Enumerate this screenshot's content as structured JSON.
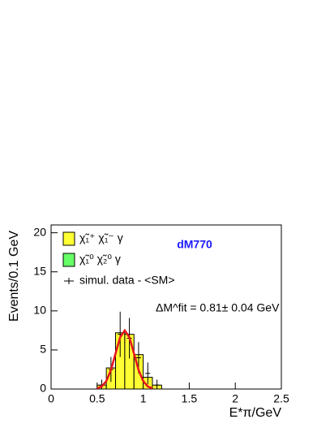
{
  "chart_data": {
    "type": "histogram",
    "title": "dM770",
    "annotation": "ΔM^fit = 0.81± 0.04 GeV",
    "x_label": "E*π/GeV",
    "y_label": "Events/0.1 GeV",
    "bins": [
      0.5,
      0.6,
      0.7,
      0.8,
      0.9,
      1.0,
      1.1,
      1.2
    ],
    "series": [
      {
        "name": "χ̃₁⁺ χ̃₁⁻ γ",
        "color": "#ffff33",
        "values": [
          0.5,
          2.7,
          7.2,
          7.0,
          4.4,
          1.5,
          0.5
        ]
      },
      {
        "name": "χ̃₁⁰ χ̃₂⁰ γ",
        "color": "#66ff66",
        "values": [
          0,
          0,
          0,
          0,
          0,
          0,
          0
        ]
      }
    ],
    "data_points": {
      "name": "simul. data - <SM>",
      "color": "#000000",
      "x": [
        0.55,
        0.65,
        0.75,
        0.85,
        0.95,
        1.05,
        1.15
      ],
      "values": [
        0.5,
        2.5,
        7.0,
        6.5,
        4.0,
        2.0,
        0.5
      ],
      "errors": [
        0.7,
        1.6,
        2.9,
        2.6,
        2.0,
        1.4,
        0.7
      ]
    },
    "fit": {
      "color": "#e8141c",
      "x": [
        0.5,
        0.55,
        0.6,
        0.65,
        0.7,
        0.75,
        0.8,
        0.85,
        0.9,
        0.95,
        1.0,
        1.05,
        1.1
      ],
      "values": [
        0.08,
        0.33,
        1.02,
        2.43,
        4.55,
        6.62,
        7.5,
        6.62,
        4.55,
        2.43,
        1.02,
        0.33,
        0.08
      ]
    },
    "xlim": [
      0,
      2.5
    ],
    "ylim": [
      0,
      21
    ],
    "xticks": [
      0,
      0.5,
      1,
      1.5,
      2,
      2.5
    ],
    "yticks": [
      0,
      5,
      10,
      15,
      20
    ]
  }
}
